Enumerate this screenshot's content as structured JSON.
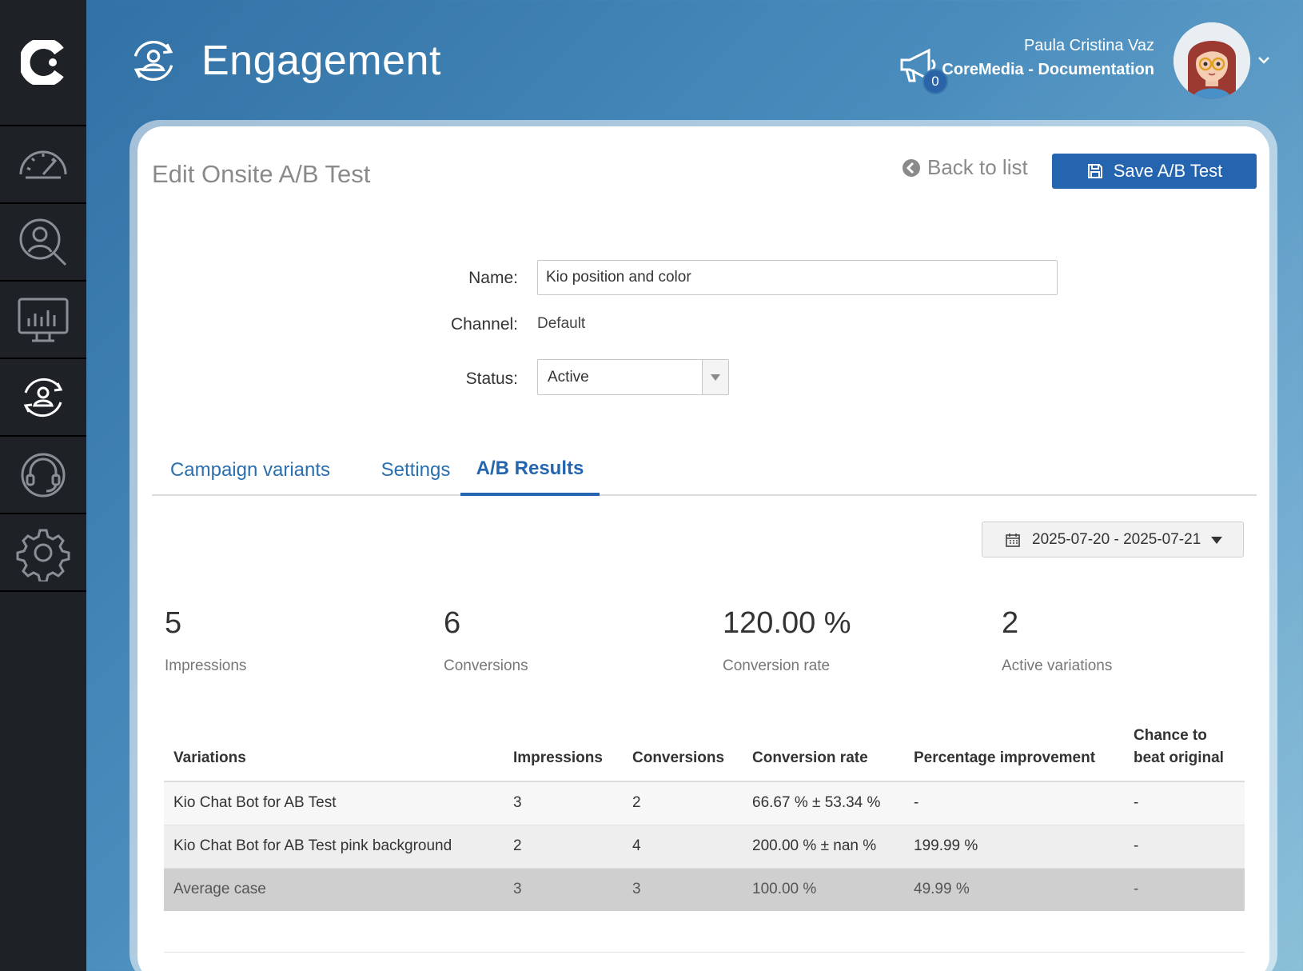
{
  "header": {
    "title": "Engagement",
    "notification_count": "0",
    "user_name": "Paula Cristina Vaz",
    "user_org": "CoreMedia - Documentation"
  },
  "sidebar": {
    "items": [
      {
        "icon": "dashboard-gauge-icon"
      },
      {
        "icon": "user-search-icon"
      },
      {
        "icon": "analytics-monitor-icon"
      },
      {
        "icon": "engagement-icon",
        "active": true
      },
      {
        "icon": "support-headset-icon"
      },
      {
        "icon": "settings-gear-icon"
      }
    ]
  },
  "page": {
    "title": "Edit Onsite A/B Test",
    "back_label": "Back to list",
    "save_label": "Save A/B Test"
  },
  "form": {
    "name_label": "Name:",
    "name_value": "Kio position and color",
    "channel_label": "Channel:",
    "channel_value": "Default",
    "status_label": "Status:",
    "status_value": "Active"
  },
  "tabs": [
    {
      "label": "Campaign variants"
    },
    {
      "label": "Settings"
    },
    {
      "label": "A/B Results",
      "active": true
    }
  ],
  "date_range": "2025-07-20 - 2025-07-21",
  "stats": [
    {
      "value": "5",
      "label": "Impressions"
    },
    {
      "value": "6",
      "label": "Conversions"
    },
    {
      "value": "120.00 %",
      "label": "Conversion rate"
    },
    {
      "value": "2",
      "label": "Active variations"
    }
  ],
  "table": {
    "headers": [
      "Variations",
      "Impressions",
      "Conversions",
      "Conversion rate",
      "Percentage improvement",
      "Chance to beat original"
    ],
    "rows": [
      [
        "Kio Chat Bot for AB Test",
        "3",
        "2",
        "66.67 % ± 53.34 %",
        "-",
        "-"
      ],
      [
        "Kio Chat Bot for AB Test pink background",
        "2",
        "4",
        "200.00 % ± nan %",
        "199.99 %",
        "-"
      ],
      [
        "Average case",
        "3",
        "3",
        "100.00 %",
        "49.99 %",
        "-"
      ]
    ]
  },
  "colors": {
    "sidebar_bg": "#1e2227",
    "accent": "#2565b0",
    "header_gradient_start": "#2f6ea3"
  }
}
